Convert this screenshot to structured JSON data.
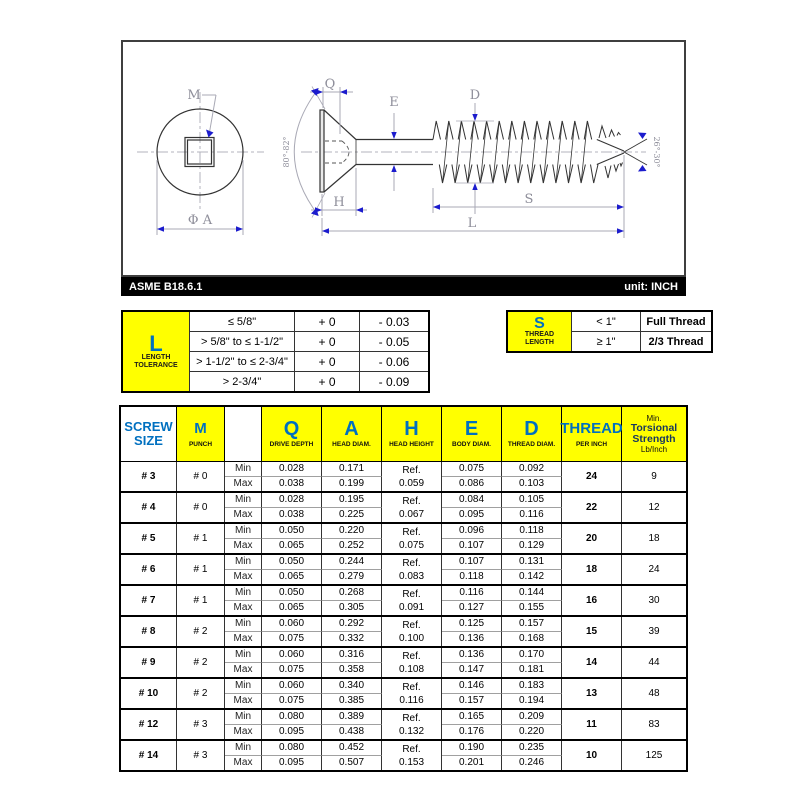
{
  "drawing": {
    "standard": "ASME B18.6.1",
    "unit": "unit: INCH",
    "labels": {
      "m": "M",
      "phi_a": "Φ A",
      "q": "Q",
      "e": "E",
      "d": "D",
      "h": "H",
      "s": "S",
      "l": "L",
      "head_angle": "80°-82°",
      "point_angle": "26°-30°"
    }
  },
  "length_tolerance": {
    "symbol": "L",
    "label_line1": "LENGTH",
    "label_line2": "TOLERANCE",
    "rows": [
      {
        "range": "≤ 5/8\"",
        "plus": "+ 0",
        "minus": "- 0.03"
      },
      {
        "range": "> 5/8\" to ≤ 1-1/2\"",
        "plus": "+ 0",
        "minus": "- 0.05"
      },
      {
        "range": "> 1-1/2\" to ≤ 2-3/4\"",
        "plus": "+ 0",
        "minus": "- 0.06"
      },
      {
        "range": "> 2-3/4\"",
        "plus": "+ 0",
        "minus": "- 0.09"
      }
    ]
  },
  "thread_length": {
    "symbol": "S",
    "label_line1": "THREAD",
    "label_line2": "LENGTH",
    "rows": [
      {
        "range": "< 1\"",
        "value": "Full Thread"
      },
      {
        "range": "≥ 1\"",
        "value": "2/3 Thread"
      }
    ]
  },
  "spec_table": {
    "header": {
      "screw_line1": "SCREW",
      "screw_line2": "SIZE",
      "m_symbol": "M",
      "m_sub": "PUNCH",
      "q_symbol": "Q",
      "q_sub": "DRIVE DEPTH",
      "a_symbol": "A",
      "a_sub": "HEAD DIAM.",
      "h_symbol": "H",
      "h_sub": "HEAD HEIGHT",
      "e_symbol": "E",
      "e_sub": "BODY DIAM.",
      "d_symbol": "D",
      "d_sub": "THREAD DIAM.",
      "thread_symbol": "THREAD",
      "thread_sub": "PER INCH",
      "tors_line1": "Min.",
      "tors_line2": "Torsional",
      "tors_line3": "Strength",
      "tors_line4": "Lb/Inch"
    },
    "row_labels": {
      "min": "Min",
      "max": "Max"
    },
    "rows": [
      {
        "size": "# 3",
        "punch": "# 0",
        "q": [
          "0.028",
          "0.038"
        ],
        "a": [
          "0.171",
          "0.199"
        ],
        "h": [
          "Ref.",
          "0.059"
        ],
        "e": [
          "0.075",
          "0.086"
        ],
        "d": [
          "0.092",
          "0.103"
        ],
        "tpi": "24",
        "strength": "9"
      },
      {
        "size": "# 4",
        "punch": "# 0",
        "q": [
          "0.028",
          "0.038"
        ],
        "a": [
          "0.195",
          "0.225"
        ],
        "h": [
          "Ref.",
          "0.067"
        ],
        "e": [
          "0.084",
          "0.095"
        ],
        "d": [
          "0.105",
          "0.116"
        ],
        "tpi": "22",
        "strength": "12"
      },
      {
        "size": "# 5",
        "punch": "# 1",
        "q": [
          "0.050",
          "0.065"
        ],
        "a": [
          "0.220",
          "0.252"
        ],
        "h": [
          "Ref.",
          "0.075"
        ],
        "e": [
          "0.096",
          "0.107"
        ],
        "d": [
          "0.118",
          "0.129"
        ],
        "tpi": "20",
        "strength": "18"
      },
      {
        "size": "# 6",
        "punch": "# 1",
        "q": [
          "0.050",
          "0.065"
        ],
        "a": [
          "0.244",
          "0.279"
        ],
        "h": [
          "Ref.",
          "0.083"
        ],
        "e": [
          "0.107",
          "0.118"
        ],
        "d": [
          "0.131",
          "0.142"
        ],
        "tpi": "18",
        "strength": "24"
      },
      {
        "size": "# 7",
        "punch": "# 1",
        "q": [
          "0.050",
          "0.065"
        ],
        "a": [
          "0.268",
          "0.305"
        ],
        "h": [
          "Ref.",
          "0.091"
        ],
        "e": [
          "0.116",
          "0.127"
        ],
        "d": [
          "0.144",
          "0.155"
        ],
        "tpi": "16",
        "strength": "30"
      },
      {
        "size": "# 8",
        "punch": "# 2",
        "q": [
          "0.060",
          "0.075"
        ],
        "a": [
          "0.292",
          "0.332"
        ],
        "h": [
          "Ref.",
          "0.100"
        ],
        "e": [
          "0.125",
          "0.136"
        ],
        "d": [
          "0.157",
          "0.168"
        ],
        "tpi": "15",
        "strength": "39"
      },
      {
        "size": "# 9",
        "punch": "# 2",
        "q": [
          "0.060",
          "0.075"
        ],
        "a": [
          "0.316",
          "0.358"
        ],
        "h": [
          "Ref.",
          "0.108"
        ],
        "e": [
          "0.136",
          "0.147"
        ],
        "d": [
          "0.170",
          "0.181"
        ],
        "tpi": "14",
        "strength": "44"
      },
      {
        "size": "# 10",
        "punch": "# 2",
        "q": [
          "0.060",
          "0.075"
        ],
        "a": [
          "0.340",
          "0.385"
        ],
        "h": [
          "Ref.",
          "0.116"
        ],
        "e": [
          "0.146",
          "0.157"
        ],
        "d": [
          "0.183",
          "0.194"
        ],
        "tpi": "13",
        "strength": "48"
      },
      {
        "size": "# 12",
        "punch": "# 3",
        "q": [
          "0.080",
          "0.095"
        ],
        "a": [
          "0.389",
          "0.438"
        ],
        "h": [
          "Ref.",
          "0.132"
        ],
        "e": [
          "0.165",
          "0.176"
        ],
        "d": [
          "0.209",
          "0.220"
        ],
        "tpi": "11",
        "strength": "83"
      },
      {
        "size": "# 14",
        "punch": "# 3",
        "q": [
          "0.080",
          "0.095"
        ],
        "a": [
          "0.452",
          "0.507"
        ],
        "h": [
          "Ref.",
          "0.153"
        ],
        "e": [
          "0.190",
          "0.201"
        ],
        "d": [
          "0.235",
          "0.246"
        ],
        "tpi": "10",
        "strength": "125"
      }
    ]
  }
}
